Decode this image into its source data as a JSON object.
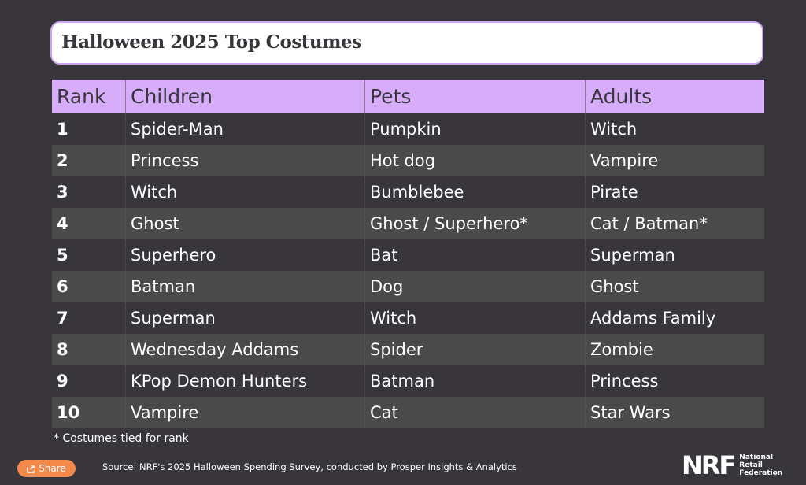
{
  "title": "Halloween 2025 Top Costumes",
  "table": {
    "headers": [
      "Rank",
      "Children",
      "Pets",
      "Adults"
    ],
    "rows": [
      [
        "1",
        "Spider-Man",
        "Pumpkin",
        "Witch"
      ],
      [
        "2",
        "Princess",
        "Hot dog",
        "Vampire"
      ],
      [
        "3",
        "Witch",
        "Bumblebee",
        "Pirate"
      ],
      [
        "4",
        "Ghost",
        "Ghost / Superhero*",
        "Cat / Batman*"
      ],
      [
        "5",
        "Superhero",
        "Bat",
        "Superman"
      ],
      [
        "6",
        "Batman",
        "Dog",
        "Ghost"
      ],
      [
        "7",
        "Superman",
        "Witch",
        "Addams Family"
      ],
      [
        "8",
        "Wednesday Addams",
        "Spider",
        "Zombie"
      ],
      [
        "9",
        "KPop Demon Hunters",
        "Batman",
        "Princess"
      ],
      [
        "10",
        "Vampire",
        "Cat",
        "Star Wars"
      ]
    ]
  },
  "footnote": "* Costumes tied for rank",
  "share_label": "Share",
  "share_icon": "share-icon",
  "source": "Source: NRF's 2025 Halloween Spending Survey, conducted by Prosper Insights & Analytics",
  "logo": {
    "mark": "NRF",
    "line1": "National",
    "line2": "Retail",
    "line3": "Federation"
  },
  "colors": {
    "background": "#38353b",
    "header": "#d7adfa",
    "alt_row": "#4b4a4b",
    "share": "#f4894c"
  }
}
